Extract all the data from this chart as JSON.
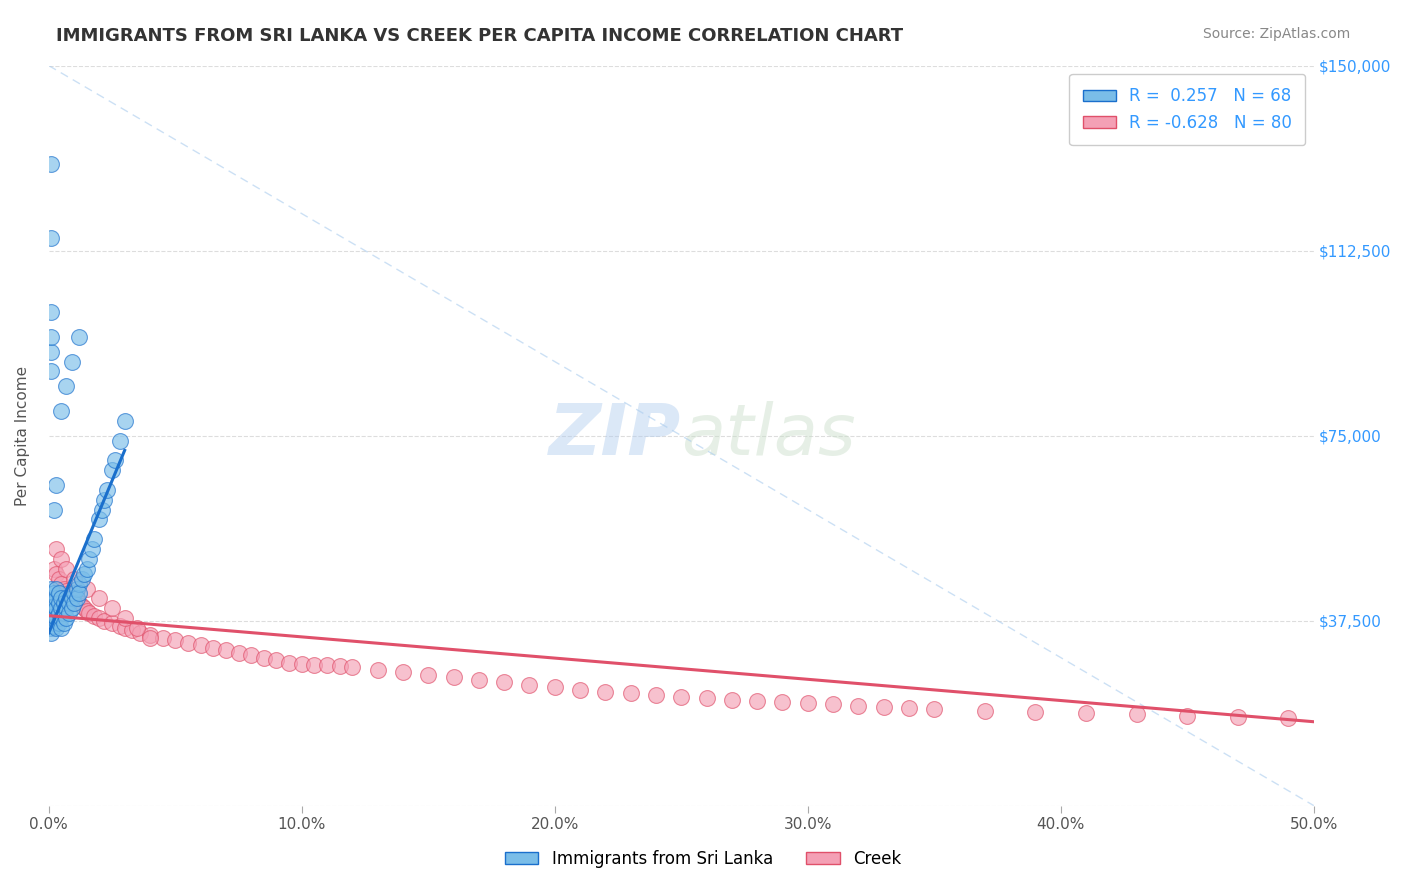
{
  "title": "IMMIGRANTS FROM SRI LANKA VS CREEK PER CAPITA INCOME CORRELATION CHART",
  "source": "Source: ZipAtlas.com",
  "ylabel": "Per Capita Income",
  "legend_series": [
    "Immigrants from Sri Lanka",
    "Creek"
  ],
  "r_values": [
    0.257,
    -0.628
  ],
  "n_values": [
    68,
    80
  ],
  "r_label_color": "#3399ff",
  "series_colors": [
    "#7abde8",
    "#f4a0b5"
  ],
  "trend_colors": [
    "#1a6fcc",
    "#e0506a"
  ],
  "xlim": [
    0.0,
    0.5
  ],
  "ylim": [
    0,
    150000
  ],
  "yticks": [
    0,
    37500,
    75000,
    112500,
    150000
  ],
  "ytick_labels": [
    "",
    "$37,500",
    "$75,000",
    "$112,500",
    "$150,000"
  ],
  "xtick_labels": [
    "0.0%",
    "10.0%",
    "20.0%",
    "30.0%",
    "40.0%",
    "50.0%"
  ],
  "xticks": [
    0.0,
    0.1,
    0.2,
    0.3,
    0.4,
    0.5
  ],
  "watermark_zip": "ZIP",
  "watermark_atlas": "atlas",
  "background_color": "#ffffff",
  "grid_color": "#dddddd",
  "title_color": "#333333",
  "blue_scatter_x": [
    0.001,
    0.001,
    0.001,
    0.001,
    0.001,
    0.001,
    0.002,
    0.002,
    0.002,
    0.002,
    0.002,
    0.002,
    0.002,
    0.003,
    0.003,
    0.003,
    0.003,
    0.003,
    0.004,
    0.004,
    0.004,
    0.004,
    0.005,
    0.005,
    0.005,
    0.005,
    0.006,
    0.006,
    0.006,
    0.007,
    0.007,
    0.007,
    0.008,
    0.008,
    0.009,
    0.009,
    0.01,
    0.01,
    0.011,
    0.011,
    0.012,
    0.012,
    0.013,
    0.014,
    0.015,
    0.016,
    0.017,
    0.018,
    0.02,
    0.021,
    0.022,
    0.023,
    0.025,
    0.026,
    0.028,
    0.03,
    0.005,
    0.007,
    0.009,
    0.012,
    0.002,
    0.003,
    0.001,
    0.001,
    0.001,
    0.001,
    0.001,
    0.001
  ],
  "blue_scatter_y": [
    40000,
    38000,
    42000,
    36000,
    35000,
    44000,
    39000,
    41000,
    37000,
    43000,
    36500,
    38500,
    40500,
    40000,
    38000,
    42000,
    36000,
    44000,
    39000,
    41000,
    37000,
    43000,
    40000,
    38000,
    42000,
    36000,
    41000,
    39000,
    37000,
    42000,
    40000,
    38000,
    41000,
    39000,
    42000,
    40000,
    43000,
    41000,
    44000,
    42000,
    45000,
    43000,
    46000,
    47000,
    48000,
    50000,
    52000,
    54000,
    58000,
    60000,
    62000,
    64000,
    68000,
    70000,
    74000,
    78000,
    80000,
    85000,
    90000,
    95000,
    60000,
    65000,
    88000,
    92000,
    95000,
    100000,
    115000,
    130000
  ],
  "pink_scatter_x": [
    0.002,
    0.003,
    0.004,
    0.005,
    0.006,
    0.007,
    0.008,
    0.009,
    0.01,
    0.011,
    0.012,
    0.013,
    0.014,
    0.015,
    0.016,
    0.018,
    0.02,
    0.022,
    0.025,
    0.028,
    0.03,
    0.033,
    0.036,
    0.04,
    0.045,
    0.05,
    0.055,
    0.06,
    0.065,
    0.07,
    0.075,
    0.08,
    0.085,
    0.09,
    0.095,
    0.1,
    0.105,
    0.11,
    0.115,
    0.12,
    0.13,
    0.14,
    0.15,
    0.16,
    0.17,
    0.18,
    0.19,
    0.2,
    0.21,
    0.22,
    0.23,
    0.24,
    0.25,
    0.26,
    0.27,
    0.28,
    0.29,
    0.3,
    0.31,
    0.32,
    0.33,
    0.34,
    0.35,
    0.37,
    0.39,
    0.41,
    0.43,
    0.45,
    0.47,
    0.49,
    0.003,
    0.005,
    0.007,
    0.01,
    0.015,
    0.02,
    0.025,
    0.03,
    0.035,
    0.04
  ],
  "pink_scatter_y": [
    48000,
    47000,
    46000,
    45000,
    44000,
    43500,
    43000,
    42500,
    42000,
    41500,
    41000,
    40500,
    40000,
    39500,
    39000,
    38500,
    38000,
    37500,
    37000,
    36500,
    36000,
    35500,
    35000,
    34500,
    34000,
    33500,
    33000,
    32500,
    32000,
    31500,
    31000,
    30500,
    30000,
    29500,
    29000,
    28800,
    28600,
    28400,
    28200,
    28000,
    27500,
    27000,
    26500,
    26000,
    25500,
    25000,
    24500,
    24000,
    23500,
    23000,
    22800,
    22500,
    22000,
    21800,
    21500,
    21200,
    21000,
    20800,
    20500,
    20200,
    20000,
    19800,
    19500,
    19200,
    19000,
    18800,
    18500,
    18200,
    18000,
    17800,
    52000,
    50000,
    48000,
    46000,
    44000,
    42000,
    40000,
    38000,
    36000,
    34000
  ],
  "blue_trend_x": [
    0.0,
    0.03
  ],
  "blue_trend_y": [
    35000,
    72000
  ],
  "pink_trend_x": [
    0.0,
    0.5
  ],
  "pink_trend_y": [
    38500,
    17000
  ]
}
